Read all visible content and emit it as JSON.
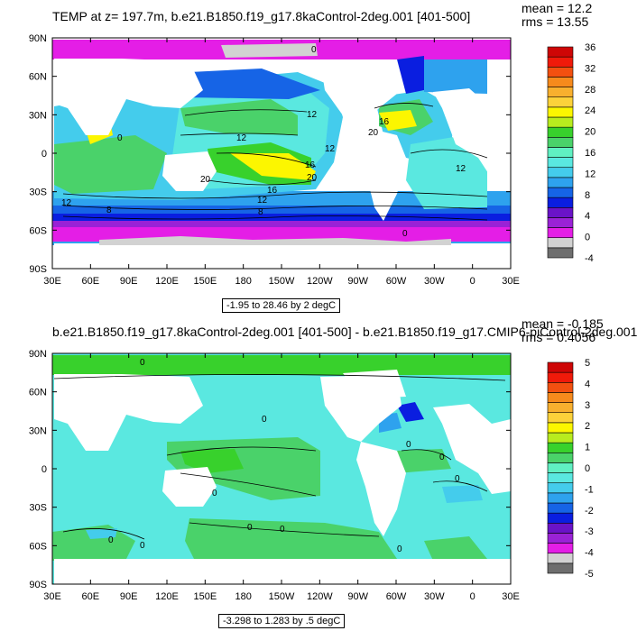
{
  "panels": [
    {
      "title": "TEMP at z= 197.7m, b.e21.B1850.f19_g17.8kaControl-2deg.001 [401-500]",
      "mean_label": "mean = 12.2",
      "rms_label": "rms = 13.55",
      "range_label": "-1.95 to 28.46 by 2 degC"
    },
    {
      "title": "b.e21.B1850.f19_g17.8kaControl-2deg.001 [401-500] - b.e21.B1850.f19_g17.CMIP6-piControl-2deg.001",
      "mean_label": "mean = -0.185",
      "rms_label": "rms = 0.4056",
      "range_label": "-3.298 to 1.283 by .5 degC"
    }
  ],
  "chart_data": [
    {
      "type": "heatmap",
      "title": "TEMP at z= 197.7m, b.e21.B1850.f19_g17.8kaControl-2deg.001 [401-500]",
      "x_ticks": [
        "30E",
        "60E",
        "90E",
        "120E",
        "150E",
        "180",
        "150W",
        "120W",
        "90W",
        "60W",
        "30W",
        "0",
        "30E"
      ],
      "y_ticks": [
        "90N",
        "60N",
        "30N",
        "0",
        "30S",
        "60S",
        "90S"
      ],
      "colorbar_ticks": [
        "36",
        "32",
        "28",
        "24",
        "20",
        "16",
        "12",
        "8",
        "4",
        "0",
        "-4"
      ],
      "colorbar_levels": [
        -4,
        -2,
        0,
        2,
        4,
        6,
        8,
        10,
        12,
        14,
        16,
        18,
        20,
        22,
        24,
        26,
        28,
        30,
        32,
        34,
        36
      ],
      "colorbar_colors": [
        "#6e6e6e",
        "#d2d2d2",
        "#e41ee6",
        "#9a22d6",
        "#6a13c8",
        "#0a1ee0",
        "#1664e6",
        "#2ea2ee",
        "#44ccec",
        "#5ae8e0",
        "#60f0c2",
        "#4ad26a",
        "#38d12c",
        "#b8ec1e",
        "#fcf600",
        "#fcd23a",
        "#f8b02e",
        "#f68a1c",
        "#f25010",
        "#f01a0a",
        "#ce0606"
      ],
      "contour_labels": [
        "12",
        "12",
        "12",
        "12",
        "16",
        "20",
        "20",
        "16",
        "12",
        "8",
        "8",
        "20",
        "16",
        "12",
        "0",
        "0",
        "0"
      ],
      "mean": 12.2,
      "rms": 13.55,
      "data_min": -1.95,
      "data_max": 28.46,
      "contour_interval": 2,
      "units": "degC"
    },
    {
      "type": "heatmap",
      "title": "b.e21.B1850.f19_g17.8kaControl-2deg.001 [401-500] - b.e21.B1850.f19_g17.CMIP6-piControl-2deg.001",
      "x_ticks": [
        "30E",
        "60E",
        "90E",
        "120E",
        "150E",
        "180",
        "150W",
        "120W",
        "90W",
        "60W",
        "30W",
        "0",
        "30E"
      ],
      "y_ticks": [
        "90N",
        "60N",
        "30N",
        "0",
        "30S",
        "60S",
        "90S"
      ],
      "colorbar_ticks": [
        "5",
        "4",
        "3",
        "2",
        "1",
        "0",
        "-1",
        "-2",
        "-3",
        "-4",
        "-5"
      ],
      "colorbar_levels": [
        -5,
        -4.5,
        -4,
        -3.5,
        -3,
        -2.5,
        -2,
        -1.5,
        -1,
        -0.5,
        0,
        0.5,
        1,
        1.5,
        2,
        2.5,
        3,
        3.5,
        4,
        4.5,
        5
      ],
      "colorbar_colors": [
        "#6e6e6e",
        "#d2d2d2",
        "#e41ee6",
        "#9a22d6",
        "#6a13c8",
        "#0a1ee0",
        "#1664e6",
        "#2ea2ee",
        "#44ccec",
        "#5ae8e0",
        "#60f0c2",
        "#4ad26a",
        "#38d12c",
        "#b8ec1e",
        "#fcf600",
        "#fcd23a",
        "#f8b02e",
        "#f68a1c",
        "#f25010",
        "#f01a0a",
        "#ce0606"
      ],
      "contour_labels": [
        "0",
        "0",
        "0",
        "0",
        "0",
        "0",
        "0",
        "0",
        "0",
        "0",
        "0"
      ],
      "mean": -0.185,
      "rms": 0.4056,
      "data_min": -3.298,
      "data_max": 1.283,
      "contour_interval": 0.5,
      "units": "degC"
    }
  ]
}
